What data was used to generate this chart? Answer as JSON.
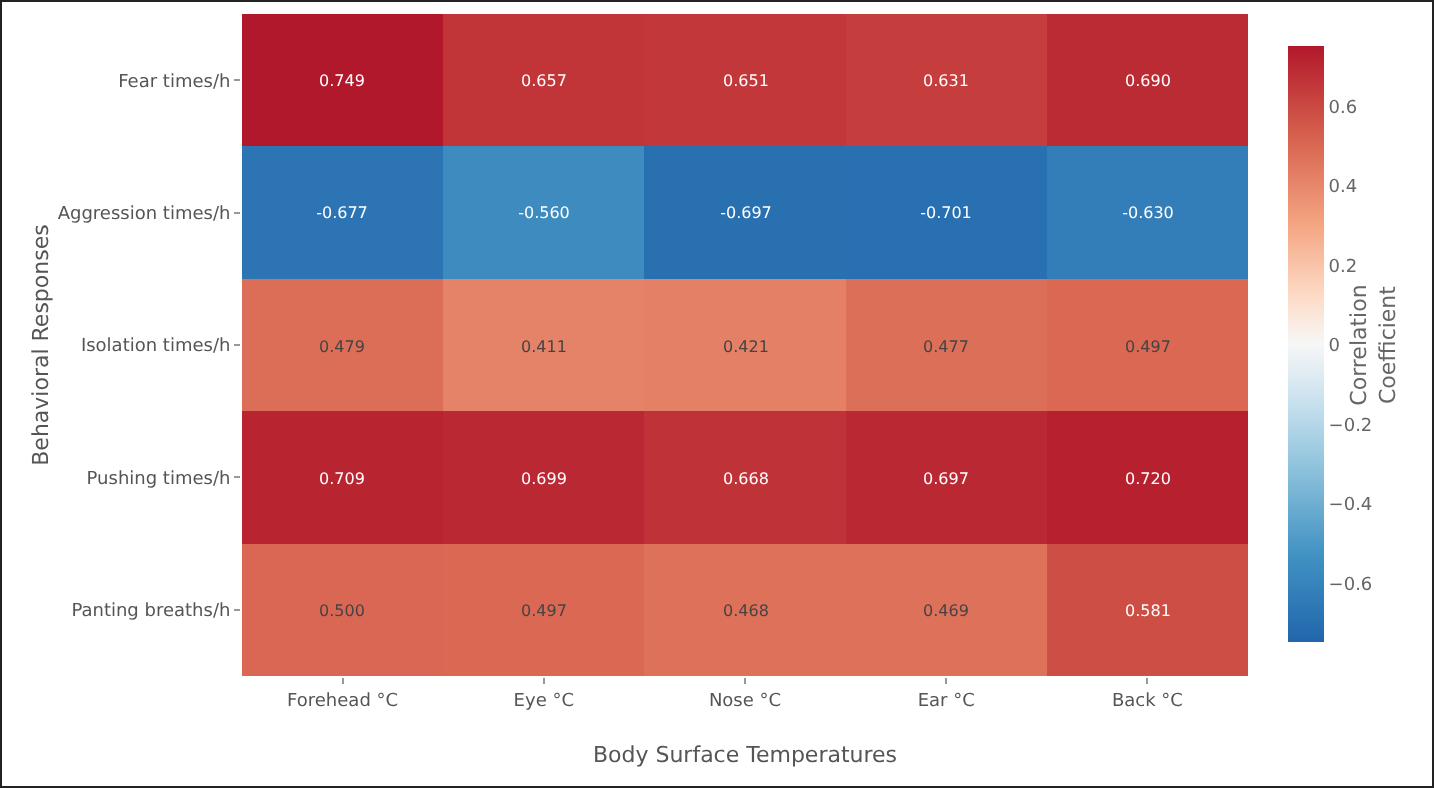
{
  "chart_data": {
    "type": "heatmap",
    "xlabel": "Body Surface Temperatures",
    "ylabel": "Behavioral Responses",
    "clabel": "Correlation Coefficient",
    "categories": [
      "Forehead °C",
      "Eye °C",
      "Nose °C",
      "Ear °C",
      "Back °C"
    ],
    "y_categories": [
      "Fear times/h",
      "Aggression times/h",
      "Isolation times/h",
      "Pushing times/h",
      "Panting breaths/h"
    ],
    "cells": [
      [
        0.749,
        0.657,
        0.651,
        0.631,
        0.69
      ],
      [
        -0.677,
        -0.56,
        -0.697,
        -0.701,
        -0.63
      ],
      [
        0.479,
        0.411,
        0.421,
        0.477,
        0.497
      ],
      [
        0.709,
        0.699,
        0.668,
        0.697,
        0.72
      ],
      [
        0.5,
        0.497,
        0.468,
        0.469,
        0.581
      ]
    ],
    "cell_labels": [
      [
        "0.749",
        "0.657",
        "0.651",
        "0.631",
        "0.690"
      ],
      [
        "-0.677",
        "-0.560",
        "-0.697",
        "-0.701",
        "-0.630"
      ],
      [
        "0.479",
        "0.411",
        "0.421",
        "0.477",
        "0.497"
      ],
      [
        "0.709",
        "0.699",
        "0.668",
        "0.697",
        "0.720"
      ],
      [
        "0.500",
        "0.497",
        "0.468",
        "0.469",
        "0.581"
      ]
    ],
    "clim": [
      -0.749,
      0.749
    ],
    "cticks": [
      {
        "value": -0.6,
        "label": "−0.6"
      },
      {
        "value": -0.4,
        "label": "−0.4"
      },
      {
        "value": -0.2,
        "label": "−0.2"
      },
      {
        "value": 0,
        "label": "0"
      },
      0.2,
      0.4,
      0.6
    ]
  }
}
